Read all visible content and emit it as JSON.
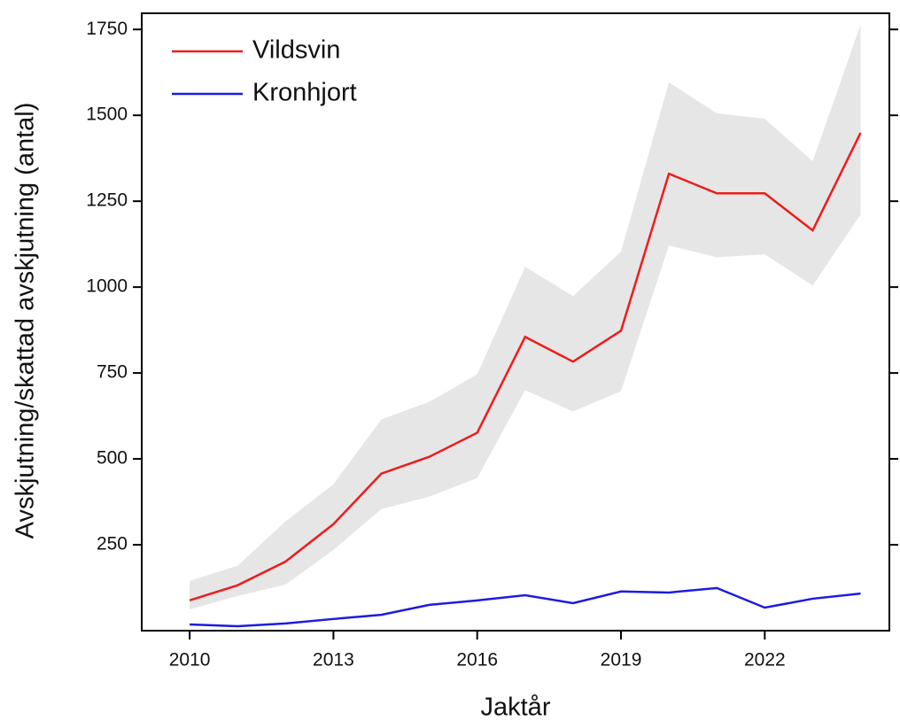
{
  "chart_data": {
    "type": "line",
    "x_label": "Jaktår",
    "y_label": "Avskjutning/skattad avskjutning (antal)",
    "x": [
      2010,
      2011,
      2012,
      2013,
      2014,
      2015,
      2016,
      2017,
      2018,
      2019,
      2020,
      2021,
      2022,
      2023,
      2024
    ],
    "series": [
      {
        "name": "Vildsvin",
        "color": "#ee1c1c",
        "band_color": "#e6e6e6",
        "values": [
          88,
          132,
          201,
          310,
          457,
          506,
          576,
          855,
          783,
          873,
          1330,
          1273,
          1273,
          1165,
          1449
        ],
        "upper": [
          145,
          189,
          318,
          426,
          615,
          666,
          746,
          1059,
          974,
          1103,
          1596,
          1506,
          1490,
          1366,
          1764
        ],
        "lower": [
          62,
          101,
          134,
          235,
          354,
          390,
          444,
          700,
          638,
          697,
          1121,
          1087,
          1095,
          1005,
          1211
        ]
      },
      {
        "name": "Kronhjort",
        "color": "#1c1ce0",
        "values": [
          18,
          13,
          21,
          34,
          46,
          75,
          88,
          103,
          80,
          114,
          111,
          124,
          67,
          93,
          108
        ]
      }
    ],
    "xlim": [
      2009,
      2024.6
    ],
    "xticks": [
      2010,
      2013,
      2016,
      2019,
      2022
    ],
    "ylim": [
      0,
      1797
    ],
    "yticks": [
      250,
      500,
      750,
      1000,
      1250,
      1500,
      1750
    ],
    "legend": "upper left",
    "grid": false
  }
}
